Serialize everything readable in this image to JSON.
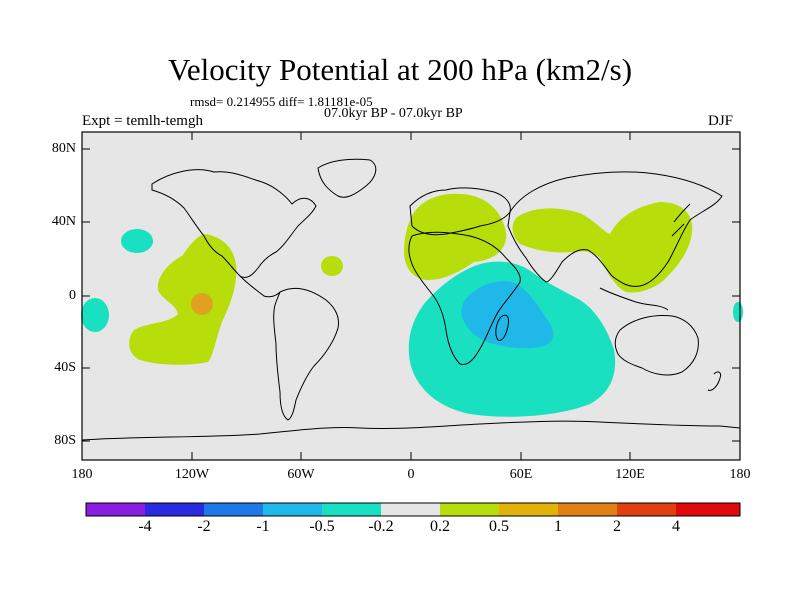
{
  "title": "Velocity Potential at 200 hPa (km2/s)",
  "stats": "rmsd= 0.214955 diff= 1.81181e-05",
  "period": "07.0kyr BP - 07.0kyr BP",
  "experiment": "Expt = temlh-temgh",
  "season": "DJF",
  "y_axis_labels": [
    "80N",
    "40N",
    "0",
    "40S",
    "80S"
  ],
  "x_axis_labels": [
    "180",
    "120W",
    "60W",
    "0",
    "60E",
    "120E",
    "180"
  ],
  "colorbar": {
    "labels": [
      "-4",
      "-2",
      "-1",
      "-0.5",
      "-0.2",
      "0.2",
      "0.5",
      "1",
      "2",
      "4"
    ],
    "colors": [
      "#8a1ee0",
      "#2a2ae0",
      "#1f78e8",
      "#1fb8e8",
      "#19e0c0",
      "#e6e6e6",
      "#b7dd0a",
      "#e0b20a",
      "#e08010",
      "#e04010",
      "#e00a0a"
    ]
  },
  "field_colors": {
    "background": "#e6e6e6",
    "neg_weak": "#19e0c0",
    "neg_mid": "#1fb8e8",
    "pos_weak": "#b7dd0a",
    "pos_mid": "#e0a020"
  }
}
